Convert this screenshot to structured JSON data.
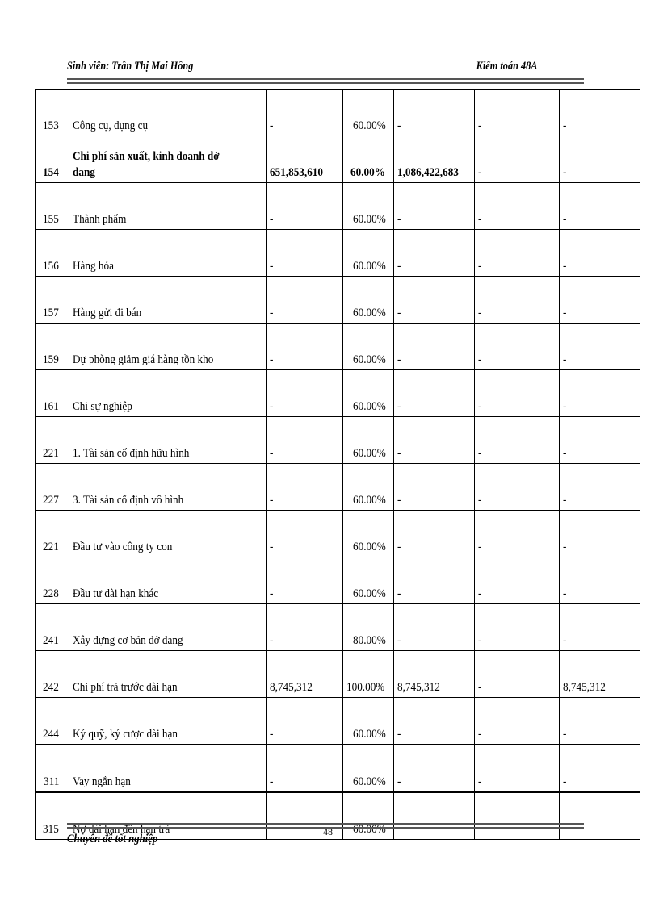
{
  "header": {
    "left": "Sinh viên: Trần Thị Mai Hồng",
    "right": "Kiểm toán 48A"
  },
  "rows": [
    {
      "code": "153",
      "name": "Công cụ, dụng cụ",
      "c1": "-",
      "pct": "60.00%",
      "c2": "-",
      "c3": "-",
      "c4": "-"
    },
    {
      "code": "154",
      "name": "Chi phí sản xuất, kinh doanh dở dang",
      "c1": "651,853,610",
      "pct": "60.00%",
      "c2": "1,086,422,683",
      "c3": "-",
      "c4": "-",
      "bold": true
    },
    {
      "code": "155",
      "name": "Thành phẩm",
      "c1": "-",
      "pct": "60.00%",
      "c2": "-",
      "c3": "-",
      "c4": "-"
    },
    {
      "code": "156",
      "name": "Hàng hóa",
      "c1": "-",
      "pct": "60.00%",
      "c2": "-",
      "c3": "-",
      "c4": "-"
    },
    {
      "code": "157",
      "name": "Hàng gửi đi bán",
      "c1": "-",
      "pct": "60.00%",
      "c2": "-",
      "c3": "-",
      "c4": "-"
    },
    {
      "code": "159",
      "name": "Dự phòng giảm giá hàng tồn kho",
      "c1": "-",
      "pct": "60.00%",
      "c2": "-",
      "c3": "-",
      "c4": "-"
    },
    {
      "code": "161",
      "name": "Chi sự nghiệp",
      "c1": "-",
      "pct": "60.00%",
      "c2": "-",
      "c3": "-",
      "c4": "-"
    },
    {
      "code": "221",
      "name": "1. Tài sản cố định hữu hình",
      "c1": "-",
      "pct": "60.00%",
      "c2": "-",
      "c3": "-",
      "c4": "-"
    },
    {
      "code": "227",
      "name": "3. Tài sản cố định vô hình",
      "c1": "-",
      "pct": "60.00%",
      "c2": "-",
      "c3": "-",
      "c4": "-"
    },
    {
      "code": "221",
      "name": "Đầu tư vào công ty con",
      "c1": "-",
      "pct": "60.00%",
      "c2": "-",
      "c3": "-",
      "c4": "-"
    },
    {
      "code": "228",
      "name": "Đầu tư dài hạn khác",
      "c1": "-",
      "pct": "60.00%",
      "c2": "-",
      "c3": "-",
      "c4": "-"
    },
    {
      "code": "241",
      "name": "Xây dựng cơ bản dở dang",
      "c1": "-",
      "pct": "80.00%",
      "c2": "-",
      "c3": "-",
      "c4": "-"
    },
    {
      "code": "242",
      "name": "Chi phí trả trước dài hạn",
      "c1": "8,745,312",
      "pct": "100.00%",
      "c2": "8,745,312",
      "c3": "-",
      "c4": "8,745,312"
    },
    {
      "code": "244",
      "name": "Ký quỹ, ký cược dài hạn",
      "c1": "-",
      "pct": "60.00%",
      "c2": "-",
      "c3": "-",
      "c4": "-"
    },
    {
      "code": "311",
      "name": "Vay ngắn hạn",
      "c1": "-",
      "pct": "60.00%",
      "c2": "-",
      "c3": "-",
      "c4": "-",
      "thick": true
    },
    {
      "code": "315",
      "name": "Nợ dài hạn đến hạn trả",
      "c1": "",
      "pct": "60.00%",
      "c2": "",
      "c3": "",
      "c4": "",
      "thick": true
    }
  ],
  "footer": {
    "page_number": "48",
    "title": "Chuyên  đề tốt nghiệp"
  }
}
